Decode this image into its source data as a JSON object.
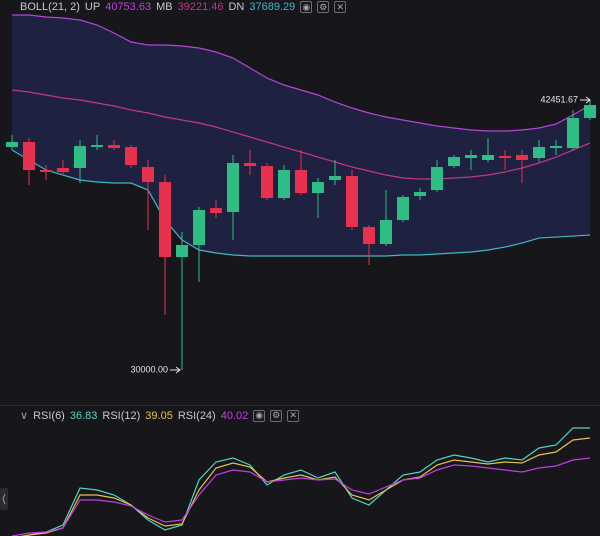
{
  "chart_data": [
    {
      "type": "candlestick",
      "legend_title": "BOLL(21, 2)",
      "ylim": [
        28386,
        47063
      ],
      "up_color": "#2ebd85",
      "down_color": "#e8304f",
      "band_fill": "#2a2f6e",
      "open": [
        40283,
        40514,
        39223,
        39315,
        39315,
        40283,
        40375,
        40283,
        39361,
        38669,
        35211,
        35764,
        37470,
        37286,
        39546,
        39407,
        37931,
        39223,
        38162,
        38762,
        38946,
        36594,
        35810,
        36917,
        38024,
        38300,
        39407,
        39776,
        39684,
        39868,
        39914,
        39776,
        40237,
        40237,
        41621
      ],
      "high": [
        40837,
        40699,
        39453,
        39684,
        40607,
        40837,
        40607,
        40375,
        39684,
        38992,
        36363,
        37516,
        37839,
        39914,
        40145,
        39546,
        39453,
        40145,
        38854,
        39684,
        39223,
        36686,
        38300,
        38070,
        38393,
        39684,
        39914,
        40145,
        40699,
        40145,
        40145,
        40607,
        40607,
        41990,
        42451
      ],
      "low": [
        40145,
        38531,
        38762,
        38992,
        38623,
        40145,
        40145,
        39315,
        36455,
        32535,
        30000,
        34057,
        37009,
        35994,
        38992,
        37839,
        37839,
        38070,
        37009,
        38531,
        36455,
        34842,
        35718,
        36825,
        37839,
        38208,
        39315,
        39223,
        39592,
        39223,
        38623,
        39592,
        39914,
        40145,
        41529
      ],
      "close": [
        40514,
        39223,
        39131,
        39131,
        40329,
        40375,
        40237,
        39453,
        38669,
        35211,
        35764,
        37378,
        37240,
        39546,
        39407,
        37931,
        39223,
        38162,
        38669,
        38946,
        36594,
        35810,
        36917,
        37977,
        38208,
        39361,
        39822,
        39914,
        39914,
        39776,
        39684,
        40283,
        40329,
        41621,
        42220
      ],
      "series": [
        {
          "name": "UP",
          "color": "#b545d9",
          "legend_value": 40753.63,
          "values": [
            46371,
            46371,
            46279,
            46233,
            46141,
            45910,
            45541,
            45126,
            44988,
            44988,
            44941,
            44849,
            44665,
            44388,
            43927,
            43466,
            43143,
            42912,
            42682,
            42359,
            42082,
            41852,
            41667,
            41529,
            41390,
            41252,
            41160,
            41067,
            41021,
            41021,
            41067,
            41160,
            41344,
            41759,
            42220
          ]
        },
        {
          "name": "MB",
          "color": "#c2368a",
          "legend_value": 39221.46,
          "values": [
            42912,
            42820,
            42682,
            42543,
            42451,
            42313,
            42174,
            41990,
            41852,
            41667,
            41529,
            41390,
            41206,
            40975,
            40745,
            40514,
            40283,
            40053,
            39822,
            39592,
            39361,
            39177,
            38992,
            38854,
            38808,
            38808,
            38854,
            38900,
            38992,
            39131,
            39315,
            39546,
            39822,
            40145,
            40468
          ]
        },
        {
          "name": "DN",
          "color": "#3fb8c4",
          "legend_value": 37689.29,
          "values": [
            40145,
            39684,
            39223,
            38992,
            38762,
            38669,
            38623,
            38623,
            38300,
            36917,
            35994,
            35533,
            35395,
            35303,
            35256,
            35256,
            35256,
            35256,
            35256,
            35256,
            35256,
            35256,
            35256,
            35303,
            35303,
            35349,
            35395,
            35441,
            35533,
            35671,
            35855,
            36085,
            36131,
            36177,
            36223
          ]
        }
      ],
      "annotations": [
        {
          "value": 30000,
          "label": "30000.00"
        },
        {
          "value": 42451.67,
          "label": "42451.67"
        }
      ]
    },
    {
      "type": "line",
      "ylim": [
        20,
        80
      ],
      "series": [
        {
          "name": "RSI(6)",
          "color": "#4fd6c4",
          "legend_value": 36.83,
          "values": [
            20,
            22.5,
            24,
            27.5,
            46,
            45,
            42.5,
            37.5,
            30,
            25,
            27.5,
            50,
            59,
            61,
            57.5,
            47.5,
            52.5,
            55,
            51,
            54,
            41,
            37.5,
            45,
            52.5,
            54,
            60,
            62.5,
            61,
            59,
            61,
            60,
            66,
            67.5,
            76,
            76
          ]
        },
        {
          "name": "RSI(12)",
          "color": "#e6c14a",
          "legend_value": 39.05,
          "values": [
            21,
            22.5,
            23.5,
            26,
            42.5,
            42.5,
            41,
            37.5,
            31,
            27,
            28,
            45,
            56,
            58.5,
            56.5,
            49,
            51,
            52.5,
            50,
            51.5,
            42.5,
            40,
            45,
            50,
            51.5,
            57.5,
            60,
            59,
            58,
            59,
            58.5,
            62.5,
            64,
            70,
            71
          ]
        },
        {
          "name": "RSI(24)",
          "color": "#c03fe0",
          "legend_value": 40.02,
          "values": [
            22,
            23.5,
            24,
            26,
            40,
            40,
            39,
            37,
            32.5,
            29,
            30,
            42.5,
            52.5,
            55,
            54,
            49,
            50,
            51,
            50,
            50.5,
            45,
            43,
            46.5,
            50,
            51,
            55,
            57.5,
            57,
            56,
            55,
            54,
            56,
            57,
            60,
            61
          ]
        }
      ]
    }
  ]
}
